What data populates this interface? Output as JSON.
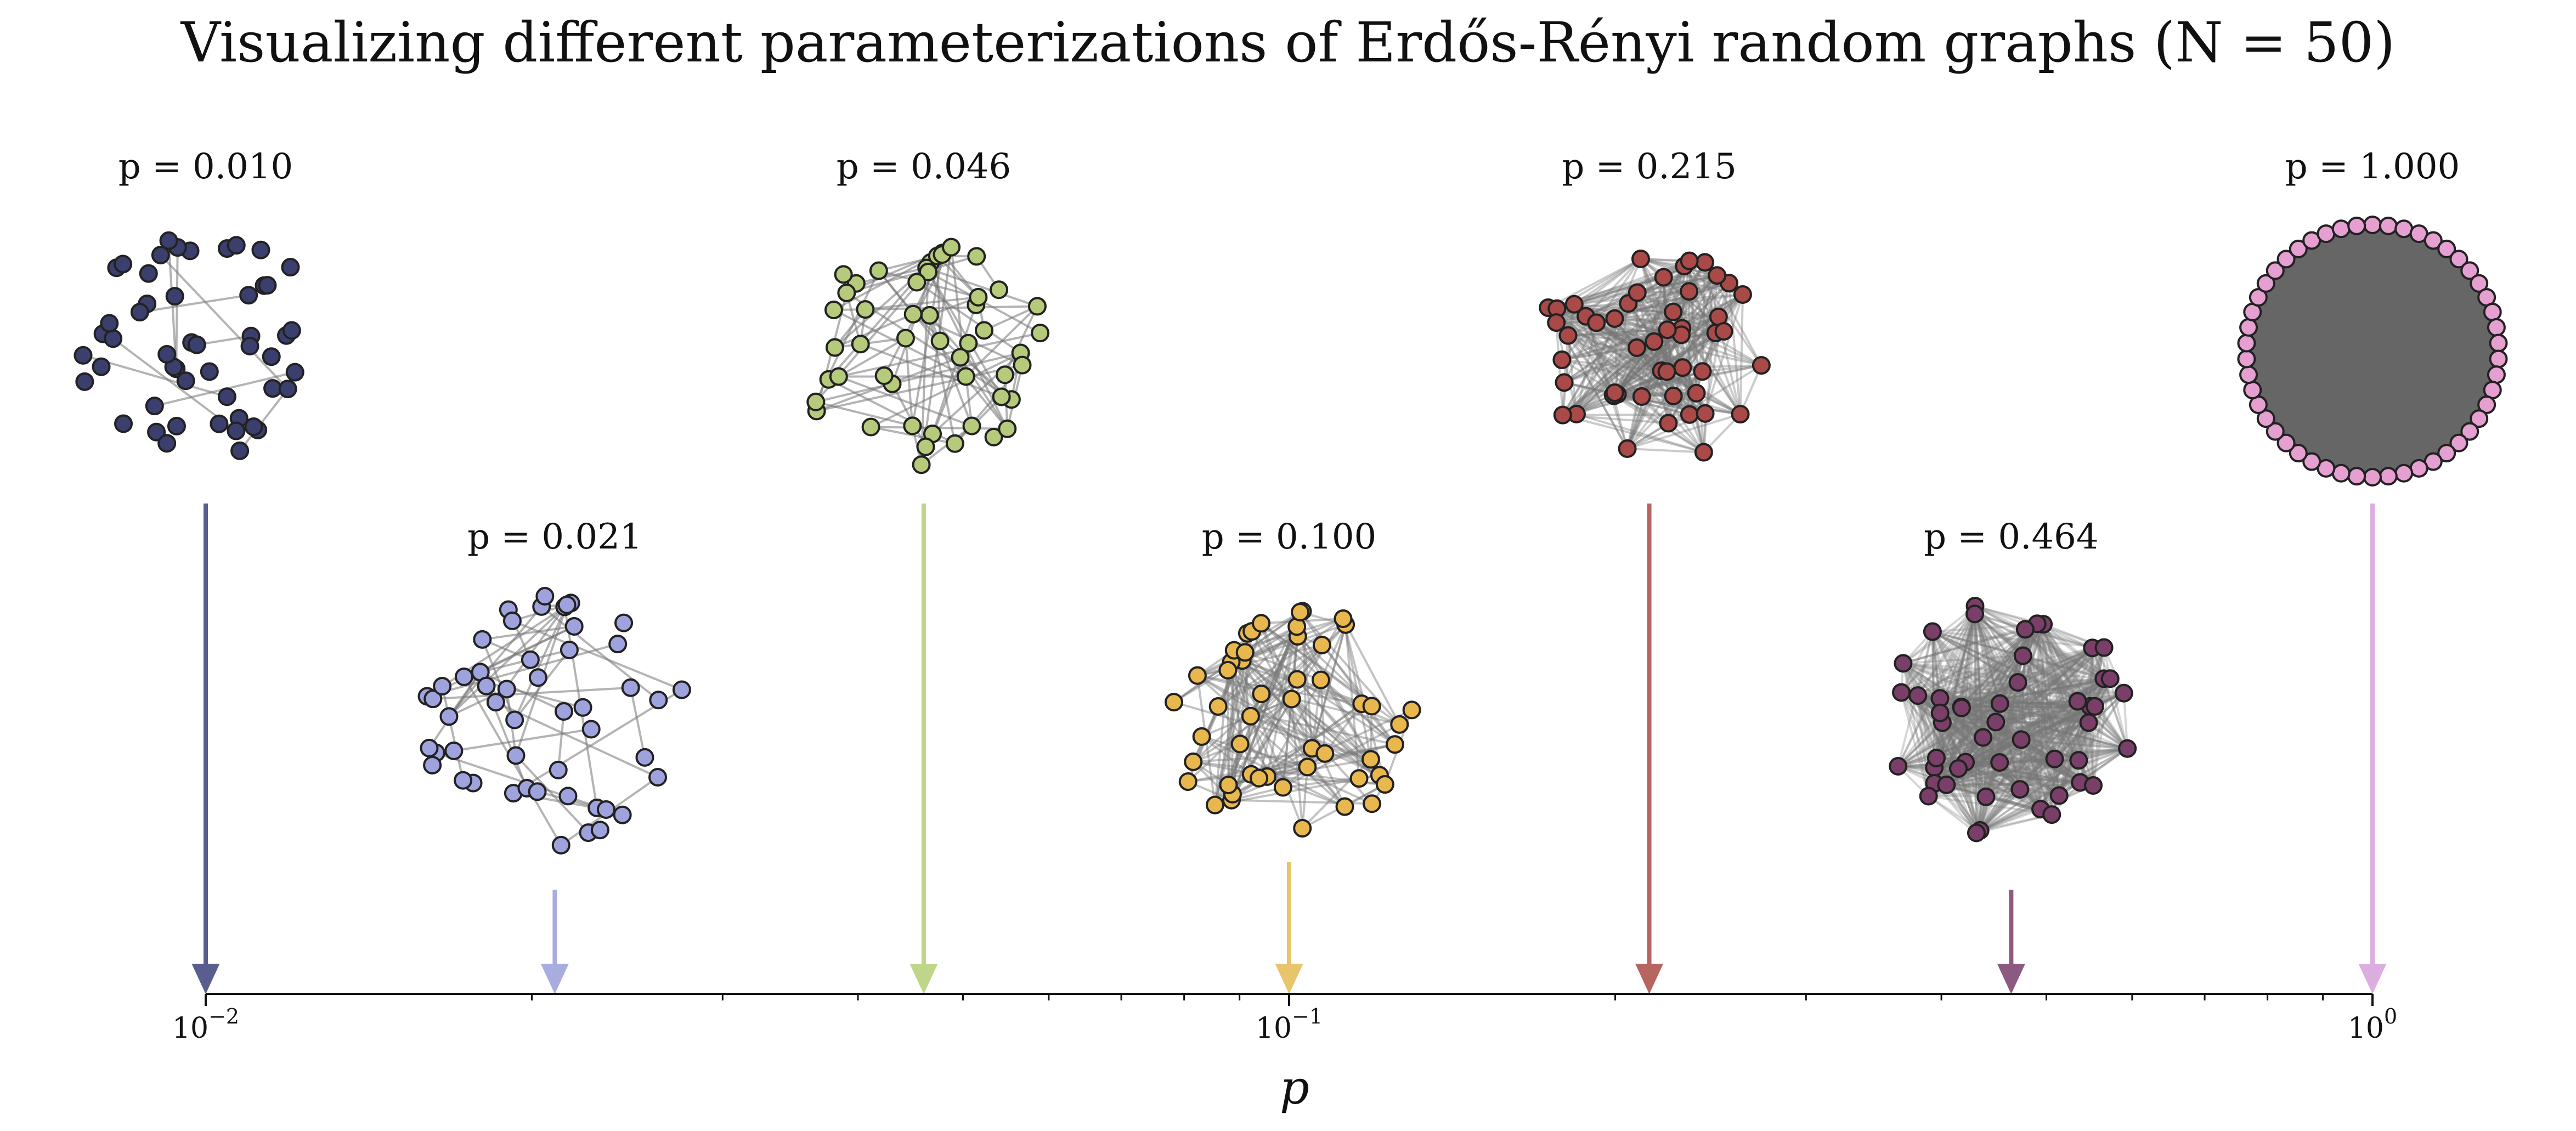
{
  "chart_data": {
    "type": "scatter",
    "title": "Visualizing different parameterizations of Erdős-Rényi random graphs (N = 50)",
    "xlabel": "p",
    "xscale": "log",
    "xlim": [
      0.01,
      1.0
    ],
    "x_ticks": [
      {
        "value": 0.01,
        "base": "10",
        "exp": "−2"
      },
      {
        "value": 0.1,
        "base": "10",
        "exp": "−1"
      },
      {
        "value": 1.0,
        "base": "10",
        "exp": "0"
      }
    ],
    "n_nodes": 50,
    "series": [
      {
        "p": 0.01,
        "label": "p = 0.010",
        "color": "#3b3f6e",
        "arrow_color": "#5a5e8e",
        "level": "upper"
      },
      {
        "p": 0.021,
        "label": "p = 0.021",
        "color": "#9ea3de",
        "arrow_color": "#a9acde",
        "level": "lower"
      },
      {
        "p": 0.046,
        "label": "p = 0.046",
        "color": "#b5cb7b",
        "arrow_color": "#bfd68a",
        "level": "upper"
      },
      {
        "p": 0.1,
        "label": "p = 0.100",
        "color": "#e8b84f",
        "arrow_color": "#e8c46a",
        "level": "lower"
      },
      {
        "p": 0.215,
        "label": "p = 0.215",
        "color": "#a94a48",
        "arrow_color": "#b86562",
        "level": "upper"
      },
      {
        "p": 0.464,
        "label": "p = 0.464",
        "color": "#7a3f68",
        "arrow_color": "#8c5a80",
        "level": "lower"
      },
      {
        "p": 1.0,
        "label": "p = 1.000",
        "color": "#e59fd0",
        "arrow_color": "#dcaee0",
        "level": "upper"
      }
    ]
  }
}
